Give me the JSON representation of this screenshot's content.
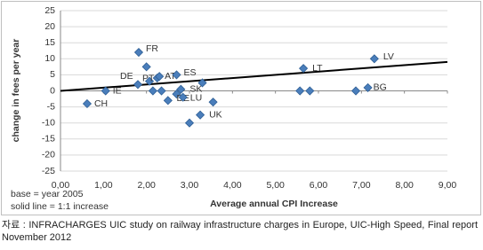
{
  "chart_data": {
    "type": "scatter",
    "x_label": "Average annual CPI Increase",
    "y_label": "change in fees per year",
    "annotations": [
      "base = year 2005",
      "solid line = 1:1 increase"
    ],
    "x": [
      0.62,
      1.05,
      1.82,
      1.8,
      2.0,
      2.07,
      2.15,
      2.25,
      2.3,
      2.35,
      2.5,
      2.7,
      2.7,
      2.8,
      2.85,
      3.0,
      3.25,
      3.3,
      3.55,
      5.65,
      5.57,
      5.8,
      6.87,
      7.15,
      7.3
    ],
    "y": [
      -4,
      0,
      12,
      2,
      7.5,
      3,
      0,
      4,
      4.5,
      0,
      -3,
      5,
      -1,
      0.5,
      -2,
      -10,
      -7.5,
      2.5,
      -3.5,
      7,
      0,
      0,
      0,
      1,
      10
    ],
    "labels": [
      "CH",
      "IE",
      "FR",
      "DE",
      null,
      "PT",
      null,
      null,
      "AT",
      null,
      null,
      "ES",
      "DE",
      "SK",
      "LU",
      null,
      "UK",
      null,
      null,
      "LT",
      null,
      null,
      null,
      "BG",
      "LV"
    ],
    "color": "#4a7ebb",
    "trend_line": {
      "x": [
        0,
        9
      ],
      "y": [
        0,
        9
      ],
      "color": "#000000"
    },
    "xlim": [
      0,
      9
    ],
    "ylim": [
      -25,
      25
    ],
    "xticks": [
      {
        "value": 0,
        "label": "0,00"
      },
      {
        "value": 1,
        "label": "1,00"
      },
      {
        "value": 2,
        "label": "2,00"
      },
      {
        "value": 3,
        "label": "3,00"
      },
      {
        "value": 4,
        "label": "4,00"
      },
      {
        "value": 5,
        "label": "5,00"
      },
      {
        "value": 6,
        "label": "6,00"
      },
      {
        "value": 7,
        "label": "7,00"
      },
      {
        "value": 8,
        "label": "8,00"
      },
      {
        "value": 9,
        "label": "9,00"
      }
    ],
    "yticks": [
      25,
      20,
      15,
      10,
      5,
      0,
      -5,
      -10,
      -15,
      -20,
      -25
    ],
    "grid": true
  },
  "source": "자료 : INFRACHARGES UIC study on railway infrastructure charges in Europe, UIC-High Speed, Final report November 2012"
}
